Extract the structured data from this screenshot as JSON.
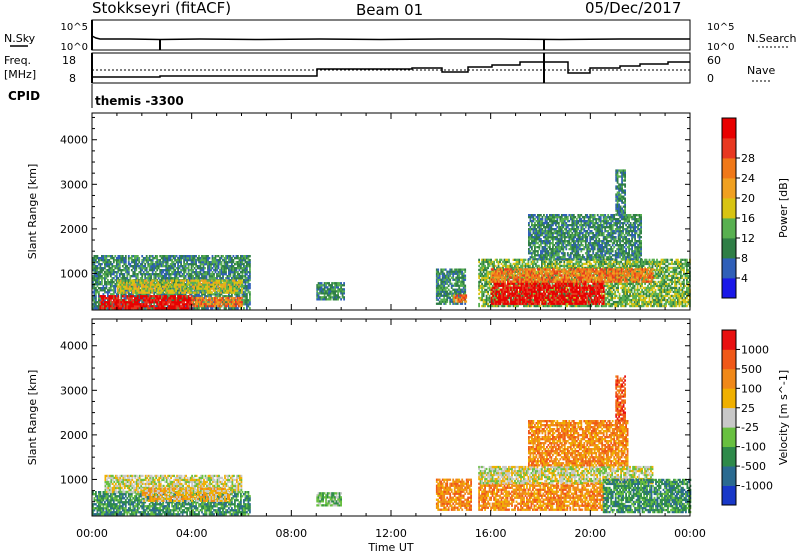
{
  "header": {
    "station": "Stokkseyri (fitACF)",
    "beam": "Beam 01",
    "date": "05/Dec/2017"
  },
  "noise_panel": {
    "left_label": "N.Sky",
    "right_label": "N.Search",
    "left_ticks": [
      "10^5",
      "10^0"
    ],
    "right_ticks": [
      "10^5",
      "10^0"
    ]
  },
  "freq_panel": {
    "left_label_1": "Freq.",
    "left_label_2": "[MHz]",
    "right_label": "Nave",
    "left_ticks": [
      "18",
      "8"
    ],
    "right_ticks": [
      "60",
      "0"
    ]
  },
  "cpid": {
    "label": "CPID",
    "program": "themis -3300"
  },
  "x_axis": {
    "label": "Time UT",
    "ticks": [
      "00:00",
      "04:00",
      "08:00",
      "12:00",
      "16:00",
      "20:00",
      "00:00"
    ]
  },
  "chart_data": [
    {
      "type": "heatmap",
      "title": "Power",
      "ylabel": "Slant Range [km]",
      "yticks": [
        1000,
        2000,
        3000,
        4000
      ],
      "ylim": [
        180,
        4600
      ],
      "xlim_hours": [
        0,
        24
      ],
      "colorbar": {
        "label": "Power [dB]",
        "ticks": [
          "4",
          "8",
          "12",
          "16",
          "20",
          "24",
          "28"
        ],
        "colors": [
          "#1a18e8",
          "#2f5fb8",
          "#2f7e46",
          "#58b050",
          "#d8c412",
          "#f0a020",
          "#f07818",
          "#e83820",
          "#e80000"
        ]
      },
      "regions": [
        {
          "t0": 0.0,
          "t1": 6.3,
          "r0": 200,
          "r1": 1400,
          "level": 2
        },
        {
          "t0": 0.3,
          "t1": 4.0,
          "r0": 200,
          "r1": 500,
          "level": 8
        },
        {
          "t0": 4.0,
          "t1": 6.0,
          "r0": 250,
          "r1": 450,
          "level": 6
        },
        {
          "t0": 1.0,
          "t1": 6.0,
          "r0": 550,
          "r1": 850,
          "level": 4
        },
        {
          "t0": 9.0,
          "t1": 10.1,
          "r0": 400,
          "r1": 800,
          "level": 2
        },
        {
          "t0": 13.8,
          "t1": 15.0,
          "r0": 300,
          "r1": 1100,
          "level": 2
        },
        {
          "t0": 14.5,
          "t1": 15.0,
          "r0": 350,
          "r1": 500,
          "level": 6
        },
        {
          "t0": 15.5,
          "t1": 24.0,
          "r0": 250,
          "r1": 1300,
          "level": 3
        },
        {
          "t0": 16.0,
          "t1": 20.5,
          "r0": 300,
          "r1": 800,
          "level": 8
        },
        {
          "t0": 16.0,
          "t1": 22.5,
          "r0": 800,
          "r1": 1100,
          "level": 6
        },
        {
          "t0": 17.5,
          "t1": 22.0,
          "r0": 1300,
          "r1": 2300,
          "level": 2
        },
        {
          "t0": 21.0,
          "t1": 21.4,
          "r0": 2300,
          "r1": 3300,
          "level": 2
        }
      ]
    },
    {
      "type": "heatmap",
      "title": "Velocity",
      "ylabel": "Slant Range [km]",
      "yticks": [
        1000,
        2000,
        3000,
        4000
      ],
      "ylim": [
        180,
        4600
      ],
      "xlim_hours": [
        0,
        24
      ],
      "colorbar": {
        "label": "Velocity [m s^-1]",
        "ticks": [
          "1000",
          "500",
          "100",
          "25",
          "-25",
          "-100",
          "-500",
          "-1000"
        ],
        "colors": [
          "#1838c8",
          "#2a6a90",
          "#2e8a4a",
          "#68c040",
          "#c8c8c8",
          "#f0b000",
          "#f08818",
          "#f05818",
          "#e81010"
        ]
      },
      "regions": [
        {
          "t0": 0.0,
          "t1": 6.3,
          "r0": 200,
          "r1": 700,
          "level": 2
        },
        {
          "t0": 0.5,
          "t1": 6.0,
          "r0": 700,
          "r1": 1100,
          "level": 4
        },
        {
          "t0": 2.0,
          "t1": 5.5,
          "r0": 500,
          "r1": 800,
          "level": 5
        },
        {
          "t0": 9.0,
          "t1": 10.0,
          "r0": 400,
          "r1": 700,
          "level": 3
        },
        {
          "t0": 13.8,
          "t1": 15.2,
          "r0": 300,
          "r1": 1000,
          "level": 6
        },
        {
          "t0": 15.5,
          "t1": 20.5,
          "r0": 300,
          "r1": 900,
          "level": 6
        },
        {
          "t0": 15.5,
          "t1": 22.5,
          "r0": 900,
          "r1": 1300,
          "level": 4
        },
        {
          "t0": 20.5,
          "t1": 24.0,
          "r0": 250,
          "r1": 1000,
          "level": 2
        },
        {
          "t0": 17.5,
          "t1": 21.5,
          "r0": 1300,
          "r1": 2300,
          "level": 6
        },
        {
          "t0": 21.0,
          "t1": 21.4,
          "r0": 2300,
          "r1": 3300,
          "level": 7
        }
      ]
    }
  ]
}
